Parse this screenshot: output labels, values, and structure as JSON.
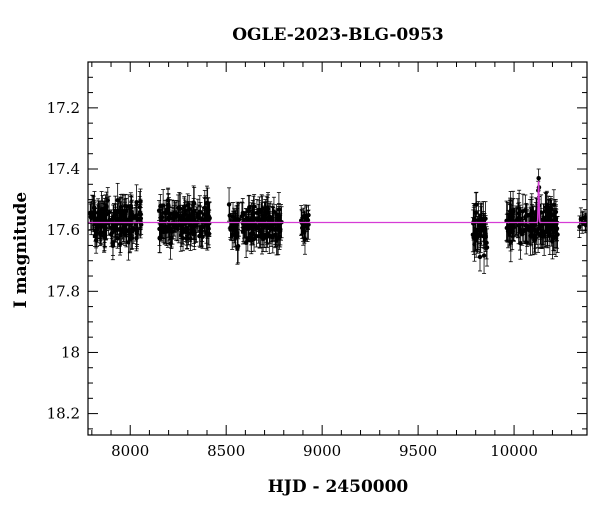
{
  "chart_data": {
    "type": "scatter",
    "title": "OGLE-2023-BLG-0953",
    "xlabel": "HJD - 2450000",
    "ylabel": "I magnitude",
    "xlim": [
      7780,
      10380
    ],
    "ylim": [
      18.27,
      17.05
    ],
    "y_inverted": true,
    "x_ticks": [
      {
        "value": 8000,
        "label": "8000"
      },
      {
        "value": 8500,
        "label": "8500"
      },
      {
        "value": 9000,
        "label": "9000"
      },
      {
        "value": 9500,
        "label": "9500"
      },
      {
        "value": 10000,
        "label": "10000"
      }
    ],
    "y_ticks": [
      {
        "value": 17.2,
        "label": "17.2"
      },
      {
        "value": 17.4,
        "label": "17.4"
      },
      {
        "value": 17.6,
        "label": "17.6"
      },
      {
        "value": 17.8,
        "label": "17.8"
      },
      {
        "value": 18.0,
        "label": "18"
      },
      {
        "value": 18.2,
        "label": "18.2"
      }
    ],
    "baseline_magnitude": 17.575,
    "model_color": "#d63cd6",
    "point_color": "#000000",
    "observing_seasons": [
      {
        "start": 7790,
        "end": 8060,
        "mean": 17.575,
        "scatter": 0.03,
        "error": 0.045,
        "count": 160
      },
      {
        "start": 8150,
        "end": 8420,
        "mean": 17.57,
        "scatter": 0.028,
        "error": 0.045,
        "count": 150
      },
      {
        "start": 8510,
        "end": 8790,
        "mean": 17.58,
        "scatter": 0.03,
        "error": 0.045,
        "count": 150
      },
      {
        "start": 8890,
        "end": 8930,
        "mean": 17.58,
        "scatter": 0.02,
        "error": 0.04,
        "count": 20
      },
      {
        "start": 9780,
        "end": 9860,
        "mean": 17.59,
        "scatter": 0.035,
        "error": 0.05,
        "count": 45
      },
      {
        "start": 9960,
        "end": 10230,
        "mean": 17.58,
        "scatter": 0.03,
        "error": 0.05,
        "count": 150
      },
      {
        "start": 10340,
        "end": 10375,
        "mean": 17.575,
        "scatter": 0.015,
        "error": 0.03,
        "count": 8
      }
    ],
    "peak": {
      "t0": 10128,
      "peak_magnitude": 17.44,
      "width": 3,
      "points": [
        {
          "x": 10124,
          "y": 17.53
        },
        {
          "x": 10126,
          "y": 17.47
        },
        {
          "x": 10128,
          "y": 17.43
        },
        {
          "x": 10130,
          "y": 17.46
        },
        {
          "x": 10132,
          "y": 17.52
        }
      ]
    }
  }
}
